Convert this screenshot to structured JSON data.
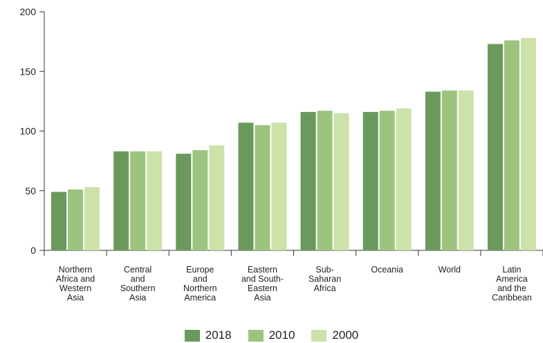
{
  "chart_data": {
    "type": "bar",
    "categories": [
      [
        "Northern",
        "Africa and",
        "Western",
        "Asia"
      ],
      [
        "Central",
        "and",
        "Southern",
        "Asia"
      ],
      [
        "Europe",
        "and",
        "Northern",
        "America"
      ],
      [
        "Eastern",
        "and South-",
        "Eastern",
        "Asia"
      ],
      [
        "Sub-",
        "Saharan",
        "Africa"
      ],
      [
        "Oceania"
      ],
      [
        "World"
      ],
      [
        "Latin",
        "America",
        "and the",
        "Caribbean"
      ]
    ],
    "series": [
      {
        "name": "2018",
        "color": "#6a9a5b",
        "values": [
          49,
          83,
          81,
          107,
          116,
          116,
          133,
          173
        ]
      },
      {
        "name": "2010",
        "color": "#9dc47e",
        "values": [
          51,
          83,
          84,
          105,
          117,
          117,
          134,
          176
        ]
      },
      {
        "name": "2000",
        "color": "#cde2a9",
        "values": [
          53,
          83,
          88,
          107,
          115,
          119,
          134,
          178
        ]
      }
    ],
    "yticks": [
      0,
      50,
      100,
      150,
      200
    ],
    "ylim": [
      0,
      200
    ],
    "grid": false,
    "legend_position": "bottom"
  }
}
